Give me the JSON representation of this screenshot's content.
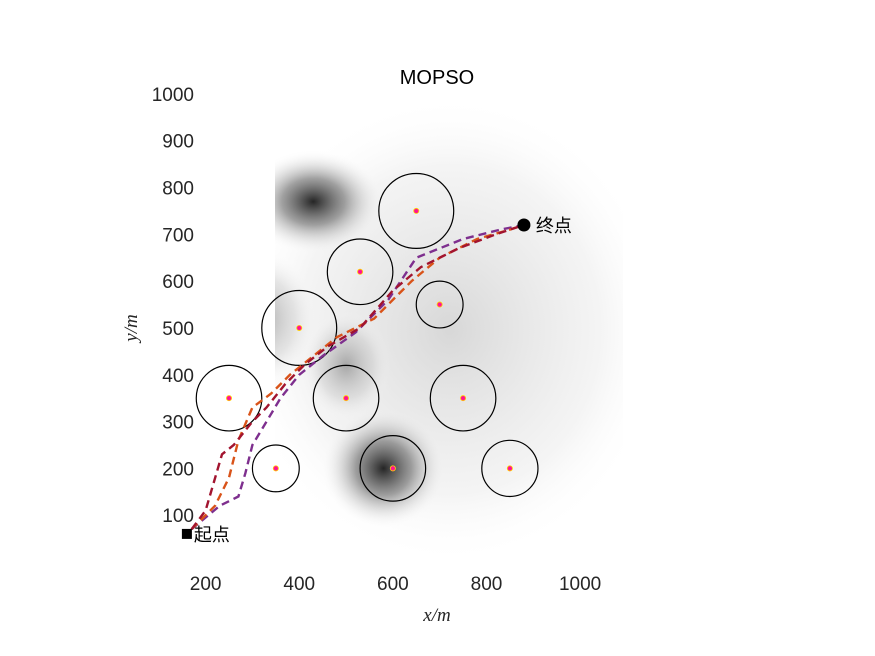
{
  "chart_data": {
    "type": "line",
    "title": "MOPSO",
    "xlabel": "x/m",
    "ylabel": "y/m",
    "xlim": [
      120,
      1060
    ],
    "ylim": [
      0,
      1000
    ],
    "xticks": [
      "200",
      "400",
      "600",
      "800",
      "1000"
    ],
    "yticks": [
      "100",
      "200",
      "300",
      "400",
      "500",
      "600",
      "700",
      "800",
      "900",
      "1000"
    ],
    "grid": false,
    "legend": "none",
    "background": {
      "type": "heatmap-grayscale",
      "dark_regions": [
        [
          430,
          770
        ],
        [
          580,
          200
        ],
        [
          320,
          520
        ],
        [
          500,
          420
        ]
      ]
    },
    "obstacles": [
      {
        "cx": 650,
        "cy": 750,
        "r": 80
      },
      {
        "cx": 530,
        "cy": 620,
        "r": 70
      },
      {
        "cx": 700,
        "cy": 550,
        "r": 50
      },
      {
        "cx": 400,
        "cy": 500,
        "r": 80
      },
      {
        "cx": 250,
        "cy": 350,
        "r": 70
      },
      {
        "cx": 500,
        "cy": 350,
        "r": 70
      },
      {
        "cx": 750,
        "cy": 350,
        "r": 70
      },
      {
        "cx": 350,
        "cy": 200,
        "r": 50
      },
      {
        "cx": 600,
        "cy": 200,
        "r": 70
      },
      {
        "cx": 850,
        "cy": 200,
        "r": 60
      }
    ],
    "start": {
      "x": 160,
      "y": 60,
      "label": "起点"
    },
    "end": {
      "x": 880,
      "y": 720,
      "label": "终点"
    },
    "series": [
      {
        "color": "#7E2F8E",
        "x": [
          170,
          230,
          270,
          285,
          300,
          330,
          360,
          400,
          450,
          520,
          590,
          650,
          750,
          830,
          880
        ],
        "y": [
          70,
          120,
          140,
          190,
          250,
          300,
          350,
          400,
          440,
          490,
          560,
          650,
          690,
          710,
          720
        ]
      },
      {
        "color": "#D95319",
        "x": [
          170,
          220,
          250,
          270,
          300,
          340,
          380,
          430,
          480,
          560,
          640,
          700,
          780,
          850,
          880
        ],
        "y": [
          70,
          120,
          180,
          260,
          330,
          360,
          400,
          440,
          480,
          520,
          600,
          650,
          690,
          710,
          720
        ]
      },
      {
        "color": "#A2142F",
        "x": [
          170,
          200,
          235,
          260,
          300,
          330,
          370,
          410,
          460,
          530,
          600,
          660,
          740,
          820,
          880
        ],
        "y": [
          70,
          110,
          230,
          250,
          300,
          330,
          380,
          420,
          460,
          500,
          580,
          630,
          670,
          700,
          720
        ]
      }
    ]
  }
}
